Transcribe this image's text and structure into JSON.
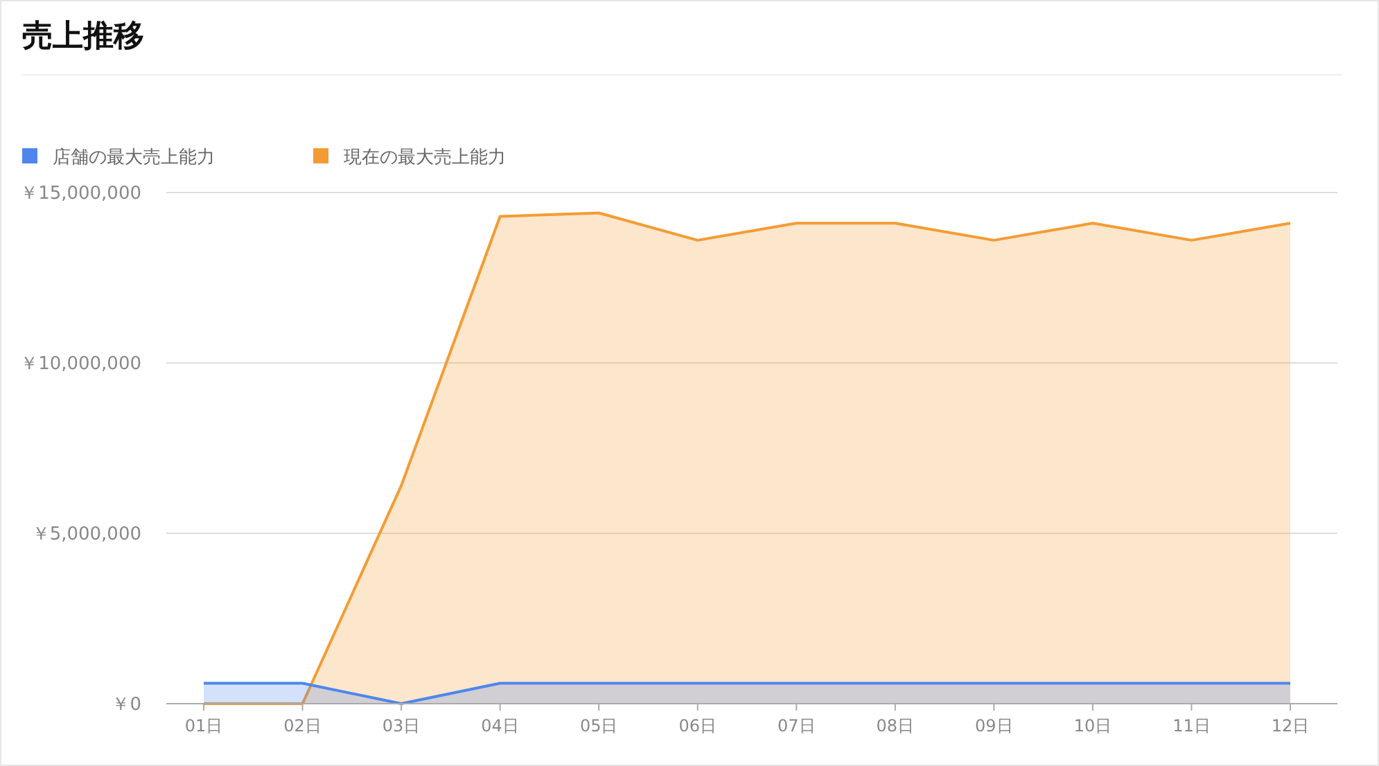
{
  "chart_data": {
    "type": "area",
    "title": "売上推移",
    "categories": [
      "01日",
      "02日",
      "03日",
      "04日",
      "05日",
      "06日",
      "07日",
      "08日",
      "09日",
      "10日",
      "11日",
      "12日"
    ],
    "series": [
      {
        "name": "店舗の最大売上能力",
        "color": "#4e86ec",
        "values": [
          600000,
          600000,
          0,
          600000,
          600000,
          600000,
          600000,
          600000,
          600000,
          600000,
          600000,
          600000
        ]
      },
      {
        "name": "現在の最大売上能力",
        "color": "#f39c34",
        "values": [
          0,
          0,
          6400000,
          14300000,
          14400000,
          13600000,
          14100000,
          14100000,
          13600000,
          14100000,
          13600000,
          14100000
        ]
      }
    ],
    "ylim": [
      0,
      15000000
    ],
    "yticks": [
      {
        "value": 0,
        "label": "￥0"
      },
      {
        "value": 5000000,
        "label": "￥5,000,000"
      },
      {
        "value": 10000000,
        "label": "￥10,000,000"
      },
      {
        "value": 15000000,
        "label": "￥15,000,000"
      }
    ],
    "grid": "y",
    "legend": "top left"
  }
}
